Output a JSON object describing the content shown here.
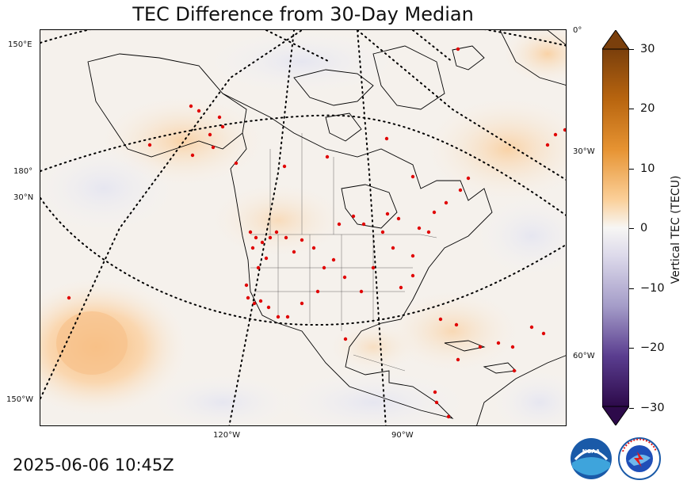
{
  "title": "TEC Difference from 30-Day Median",
  "timestamp": "2025-06-06 10:45Z",
  "map": {
    "left_labels": [
      "150°E",
      "180°",
      "30°N",
      "150°W"
    ],
    "bottom_labels": [
      "120°W",
      "90°W"
    ],
    "right_labels": [
      "0°",
      "30°W",
      "60°W"
    ]
  },
  "colorbar": {
    "label": "Vertical TEC (TECU)",
    "ticks": [
      "30",
      "20",
      "10",
      "0",
      "−10",
      "−20",
      "−30"
    ],
    "range": [
      -30,
      30
    ],
    "colors": {
      "max": "#7a3f0c",
      "high": "#d4841f",
      "mid_high": "#f4b36a",
      "zero": "#f7f6f4",
      "mid_low": "#b9b3d6",
      "low": "#5a3d8f",
      "min": "#2d0a4a"
    }
  },
  "stations_color": "#e00000",
  "logos": {
    "noaa": "NOAA",
    "nws": "NATIONAL WEATHER SERVICE"
  }
}
